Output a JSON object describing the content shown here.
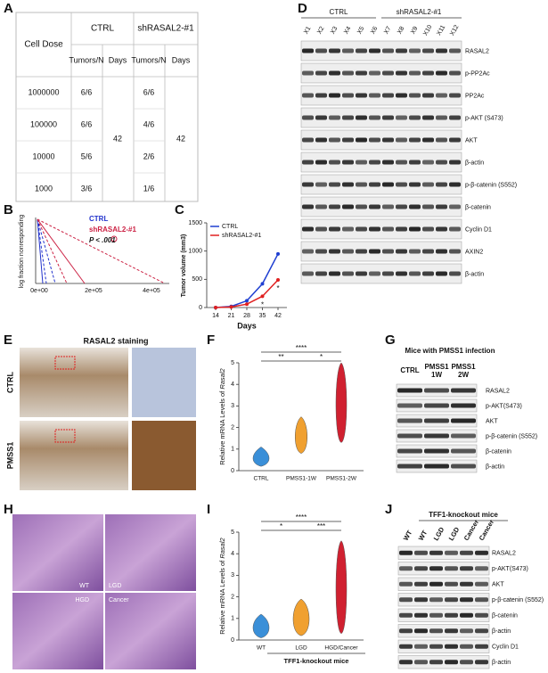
{
  "panel_labels": [
    "A",
    "B",
    "C",
    "D",
    "E",
    "F",
    "G",
    "H",
    "I",
    "J"
  ],
  "table": {
    "header": [
      "Cell Dose",
      "CTRL",
      "shRASAL2-#1"
    ],
    "subheader": [
      "Tumors/N",
      "Days",
      "Tumors/N",
      "Days"
    ],
    "rows": [
      [
        "1000000",
        "6/6",
        "6/6"
      ],
      [
        "100000",
        "6/6",
        "4/6"
      ],
      [
        "10000",
        "5/6",
        "2/6"
      ],
      [
        "1000",
        "3/6",
        "1/6"
      ]
    ],
    "days": [
      "42",
      "42"
    ]
  },
  "panel_b": {
    "ylabel": "log fraction nonresponding",
    "xticks": [
      "0e+00",
      "2e+05",
      "4e+05"
    ],
    "legend": [
      "CTRL",
      "shRASAL2-#1"
    ],
    "pvalue": "P < .001"
  },
  "chart_data": {
    "type": "line",
    "ylabel": "Tumor volume (mm3)",
    "xlabel": "Days",
    "x": [
      14,
      21,
      28,
      35,
      42
    ],
    "xlim": [
      10,
      46
    ],
    "ylim": [
      0,
      1500
    ],
    "yticks": [
      0,
      500,
      1000,
      1500
    ],
    "legend": "upper left",
    "series": [
      {
        "name": "CTRL",
        "color": "#1f3fd1",
        "values": [
          0,
          20,
          120,
          420,
          950
        ]
      },
      {
        "name": "shRASAL2-#1",
        "color": "#e02020",
        "values": [
          0,
          10,
          60,
          200,
          490
        ]
      }
    ],
    "annotations": [
      "*",
      "*"
    ]
  },
  "blot_d": {
    "groups": [
      "CTRL",
      "shRASAL2-#1"
    ],
    "lanes": [
      "X1",
      "X2",
      "X3",
      "X4",
      "X5",
      "X6",
      "X7",
      "X8",
      "X9",
      "X10",
      "X11",
      "X12"
    ],
    "rows": [
      "RASAL2",
      "p-PP2Ac",
      "PP2Ac",
      "p-AKT (S473)",
      "AKT",
      "β-actin",
      "p-β-catenin (S552)",
      "β-catenin",
      "Cyclin D1",
      "AXIN2",
      "β-actin"
    ]
  },
  "panel_e": {
    "title": "RASAL2 staining",
    "rows": [
      "CTRL",
      "PMSS1"
    ]
  },
  "panel_f": {
    "ylabel": "Relative mRNA Levels of ",
    "gene": "Rasal2",
    "categories": [
      "CTRL",
      "PMSS1-1W",
      "PMSS1-2W"
    ],
    "yticks": [
      0,
      1,
      2,
      3,
      4,
      5
    ],
    "stars": [
      "****",
      "**",
      "*"
    ]
  },
  "panel_g": {
    "title": "Mice with PMSS1 infection",
    "lanes": [
      [
        "CTRL"
      ],
      [
        "PMSS1",
        "1W"
      ],
      [
        "PMSS1",
        "2W"
      ]
    ],
    "rows": [
      "RASAL2",
      "p-AKT(S473)",
      "AKT",
      "p-β-catenin (S552)",
      "β-catenin",
      "β-actin"
    ]
  },
  "panel_h": {
    "labels": [
      "WT",
      "LGD",
      "HGD",
      "Cancer"
    ]
  },
  "panel_i": {
    "ylabel": "Relative mRNA Levels of ",
    "gene": "Rasal2",
    "categories": [
      "WT",
      "LGD",
      "HGD/Cancer"
    ],
    "group": "TFF1-knockout mice",
    "yticks": [
      0,
      1,
      2,
      3,
      4,
      5
    ],
    "stars": [
      "****",
      "*",
      "***"
    ]
  },
  "panel_j": {
    "title": "TFF1-knockout mice",
    "lanes": [
      "WT",
      "WT",
      "LGD",
      "LGD",
      "Cancer",
      "Cancer"
    ],
    "rows": [
      "RASAL2",
      "p-AKT(S473)",
      "AKT",
      "p-β-catenin (S552)",
      "β-catenin",
      "β-actin",
      "Cyclin D1",
      "β-actin"
    ]
  }
}
